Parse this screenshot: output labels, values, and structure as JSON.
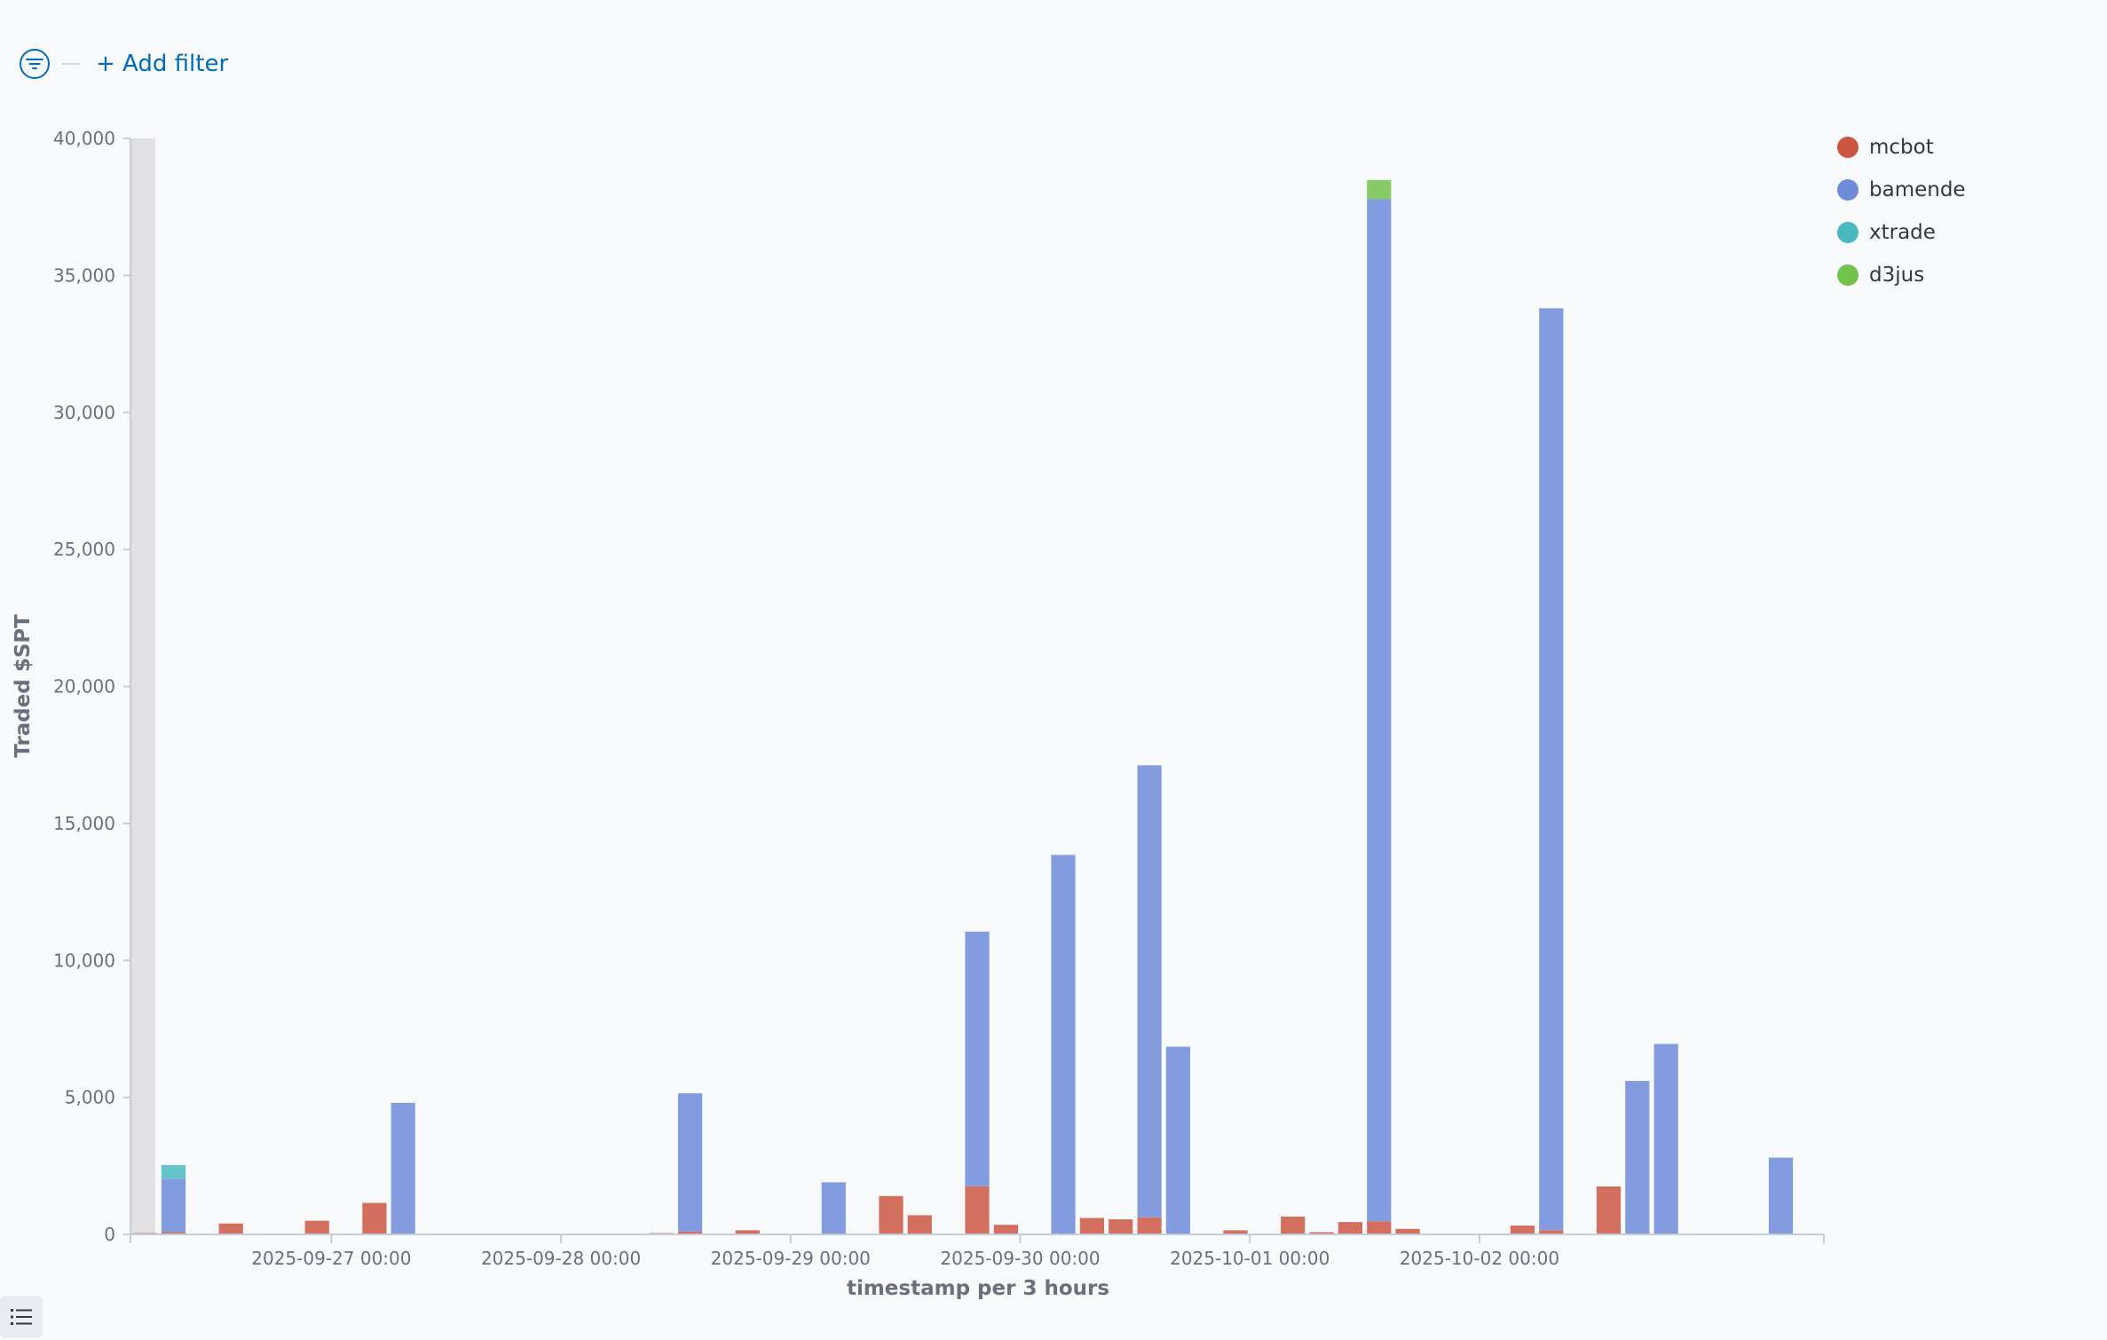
{
  "filter": {
    "add_label": "+ Add filter"
  },
  "legend": [
    {
      "name": "mcbot",
      "color": "#cc5642"
    },
    {
      "name": "bamende",
      "color": "#6e8bd9"
    },
    {
      "name": "xtrade",
      "color": "#4ab8bf"
    },
    {
      "name": "d3jus",
      "color": "#72c24b"
    }
  ],
  "chart_data": {
    "type": "bar",
    "stacked": true,
    "xlabel": "timestamp per 3 hours",
    "ylabel": "Traded $SPT",
    "ylim": [
      0,
      40000
    ],
    "yticks": [
      0,
      5000,
      10000,
      15000,
      20000,
      25000,
      30000,
      35000,
      40000
    ],
    "xticks": [
      "2025-09-27 00:00",
      "2025-09-28 00:00",
      "2025-09-29 00:00",
      "2025-09-30 00:00",
      "2025-10-01 00:00",
      "2025-10-02 00:00"
    ],
    "x_start": "2025-09-26 03:00",
    "x_end": "2025-10-03 12:00",
    "bin_hours": 3,
    "grid": false,
    "legend_position": "top-right",
    "series": [
      {
        "name": "mcbot",
        "color": "#cc5642",
        "points": [
          [
            "2025-09-26 03:00",
            50
          ],
          [
            "2025-09-26 06:00",
            80
          ],
          [
            "2025-09-26 12:00",
            400
          ],
          [
            "2025-09-26 21:00",
            500
          ],
          [
            "2025-09-27 03:00",
            1150
          ],
          [
            "2025-09-28 09:00",
            50
          ],
          [
            "2025-09-28 12:00",
            100
          ],
          [
            "2025-09-28 18:00",
            150
          ],
          [
            "2025-09-29 09:00",
            1400
          ],
          [
            "2025-09-29 12:00",
            700
          ],
          [
            "2025-09-29 18:00",
            1750
          ],
          [
            "2025-09-29 21:00",
            350
          ],
          [
            "2025-09-30 06:00",
            600
          ],
          [
            "2025-09-30 09:00",
            550
          ],
          [
            "2025-09-30 12:00",
            620
          ],
          [
            "2025-09-30 21:00",
            150
          ],
          [
            "2025-10-01 03:00",
            650
          ],
          [
            "2025-10-01 06:00",
            80
          ],
          [
            "2025-10-01 09:00",
            450
          ],
          [
            "2025-10-01 12:00",
            480
          ],
          [
            "2025-10-01 15:00",
            200
          ],
          [
            "2025-10-02 03:00",
            320
          ],
          [
            "2025-10-02 06:00",
            150
          ],
          [
            "2025-10-02 12:00",
            1750
          ]
        ]
      },
      {
        "name": "bamende",
        "color": "#6e8bd9",
        "points": [
          [
            "2025-09-26 06:00",
            1950
          ],
          [
            "2025-09-27 06:00",
            4800
          ],
          [
            "2025-09-28 12:00",
            5050
          ],
          [
            "2025-09-29 03:00",
            1900
          ],
          [
            "2025-09-29 18:00",
            9300
          ],
          [
            "2025-09-30 03:00",
            13850
          ],
          [
            "2025-09-30 12:00",
            16500
          ],
          [
            "2025-09-30 15:00",
            6850
          ],
          [
            "2025-10-01 12:00",
            37300
          ],
          [
            "2025-10-02 06:00",
            33650
          ],
          [
            "2025-10-02 15:00",
            5600
          ],
          [
            "2025-10-02 18:00",
            6950
          ],
          [
            "2025-10-03 06:00",
            2800
          ]
        ]
      },
      {
        "name": "xtrade",
        "color": "#4ab8bf",
        "points": [
          [
            "2025-09-26 06:00",
            500
          ]
        ]
      },
      {
        "name": "d3jus",
        "color": "#72c24b",
        "points": [
          [
            "2025-10-01 12:00",
            700
          ]
        ]
      }
    ]
  }
}
